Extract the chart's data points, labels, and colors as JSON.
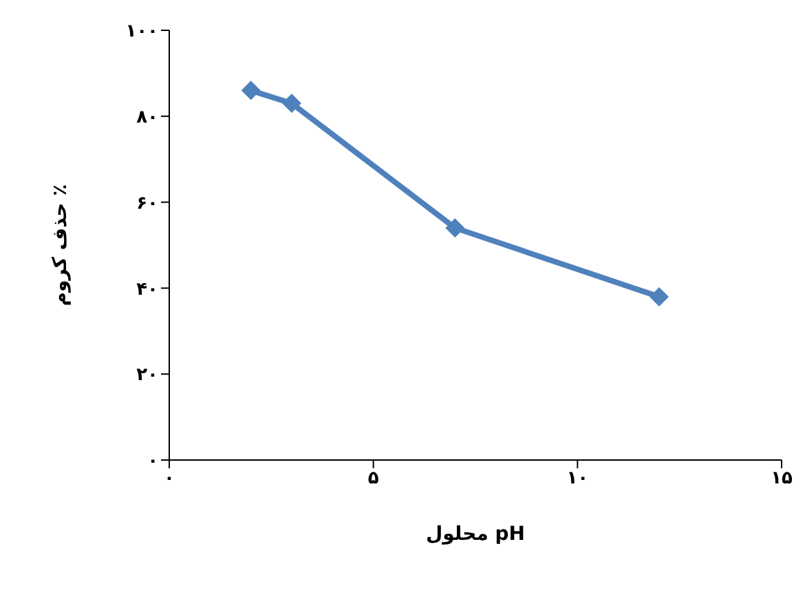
{
  "chart_data": {
    "type": "line",
    "xlabel": "pH محلول",
    "ylabel": "٪ حذف کروم",
    "x": [
      2,
      3,
      7,
      12
    ],
    "series": [
      {
        "color": "#4f81bd",
        "values": [
          86,
          83,
          54,
          38
        ]
      }
    ],
    "xlim": [
      0,
      15
    ],
    "xticks": [
      {
        "value": 0,
        "label": "۰"
      },
      {
        "value": 5,
        "label": "۵"
      },
      {
        "value": 10,
        "label": "۱۰"
      },
      {
        "value": 15,
        "label": "۱۵"
      }
    ],
    "ylim": [
      0,
      100
    ],
    "yticks": [
      {
        "value": 0,
        "label": "۰"
      },
      {
        "value": 20,
        "label": "۲۰"
      },
      {
        "value": 40,
        "label": "۴۰"
      },
      {
        "value": 60,
        "label": "۶۰"
      },
      {
        "value": 80,
        "label": "۸۰"
      },
      {
        "value": 100,
        "label": "۱۰۰"
      }
    ],
    "grid": false,
    "legend": false,
    "marker": "diamond",
    "line_style": "solid"
  }
}
